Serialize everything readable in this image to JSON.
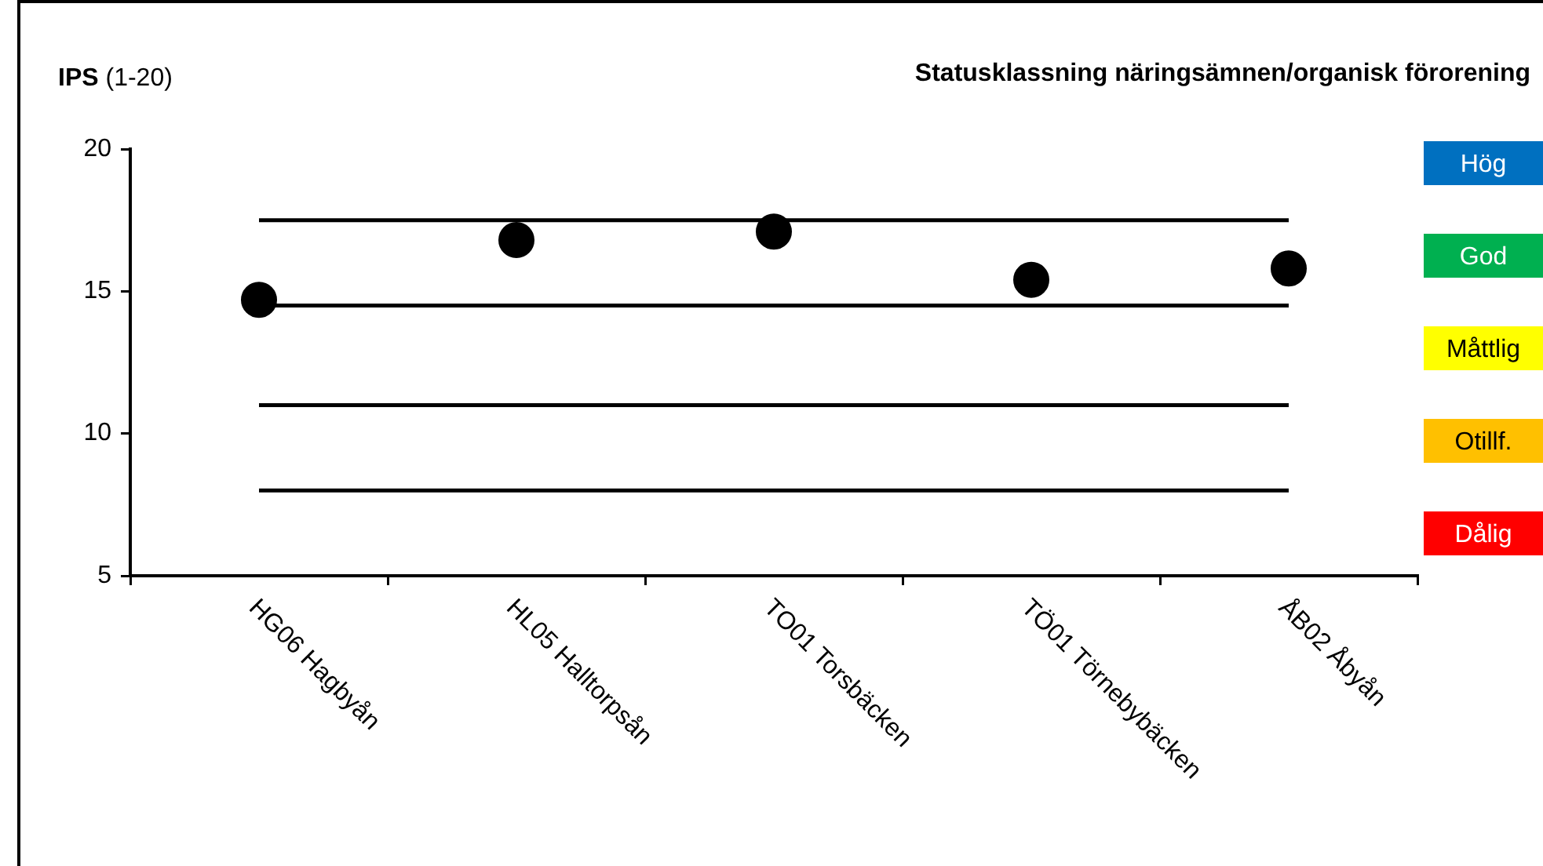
{
  "chart_data": {
    "type": "scatter",
    "title": "Statusklassning näringsämnen/organisk förorening",
    "ylabel": "IPS (1-20)",
    "categories": [
      "HG06 Hagbyån",
      "HL05 Halltorpsån",
      "TO01 Torsbäcken",
      "TÖ01 Törnebybäcken",
      "ÅB02 Åbyån"
    ],
    "values": [
      14.7,
      16.8,
      17.1,
      15.4,
      15.8
    ],
    "color": "#000000",
    "marker": "circle",
    "ylim": [
      5,
      20
    ],
    "yticks": [
      5,
      10,
      15,
      20
    ],
    "grid": false,
    "legend": false,
    "ref_lines": [
      {
        "axis": "y",
        "value": 17.5,
        "color": "#000000"
      },
      {
        "axis": "y",
        "value": 14.5,
        "color": "#000000"
      },
      {
        "axis": "y",
        "value": 11,
        "color": "#000000"
      },
      {
        "axis": "y",
        "value": 8,
        "color": "#000000"
      }
    ],
    "annotations": [
      "Hög",
      "God",
      "Måttlig",
      "Otillf.",
      "Dålig"
    ]
  }
}
